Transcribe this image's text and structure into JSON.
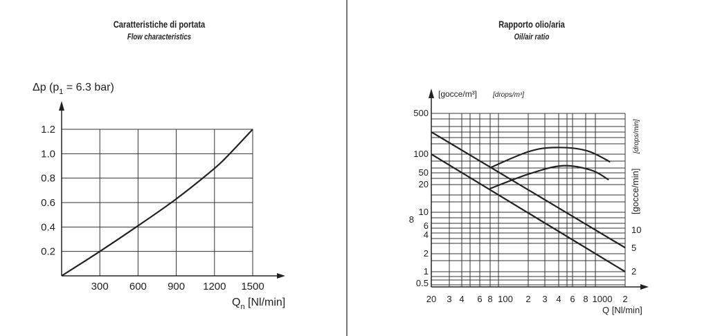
{
  "left_panel": {
    "title": "Caratteristiche di portata",
    "subtitle": "Flow characteristics"
  },
  "right_panel": {
    "title": "Rapporto olio/aria",
    "subtitle": "Oil/air ratio"
  },
  "chart_data": [
    {
      "type": "line",
      "ylabel": "Δp (p1 = 6.3 bar)",
      "ylabel_main": "Δp (p",
      "ylabel_sub": "1",
      "ylabel_rest": " = 6.3 bar)",
      "xlabel_main": "Q",
      "xlabel_sub": "n",
      "xlabel_rest": " [Nl/min]",
      "xlim": [
        0,
        1500
      ],
      "ylim": [
        0,
        1.2
      ],
      "xticks": [
        "300",
        "600",
        "900",
        "1200",
        "1500"
      ],
      "yticks": [
        "0.2",
        "0.4",
        "0.6",
        "0.8",
        "1.0",
        "1.2"
      ],
      "grid": true,
      "series": [
        {
          "x": [
            0,
            300,
            600,
            900,
            1200,
            1320,
            1500
          ],
          "y": [
            0,
            0.2,
            0.41,
            0.63,
            0.88,
            1.0,
            1.2
          ]
        }
      ],
      "color": "#222222"
    },
    {
      "type": "line",
      "xscale": "log",
      "yscale": "log",
      "ylabel": "[gocce/m³]",
      "ylabel_en": "[drops/m³]",
      "ylabel_right": "[gocce/min]",
      "ylabel_right_en": "[drops/min]",
      "xlabel": "Q [Nl/min]",
      "xlim": [
        20,
        2000
      ],
      "xticks": [
        "20",
        "3",
        "4",
        "6",
        "8",
        "100",
        "2",
        "3",
        "4",
        "6",
        "8",
        "1000",
        "2"
      ],
      "yticks_left": [
        "500",
        "100",
        "50",
        "20",
        "10",
        "8",
        "6",
        "4",
        "2",
        "1",
        "0.5"
      ],
      "yticks_right": [
        "10",
        "5",
        "2"
      ],
      "grid": true,
      "series": [
        {
          "x": [
            20,
            2000
          ],
          "y": [
            240,
            2.5
          ]
        },
        {
          "x": [
            20,
            2000
          ],
          "y": [
            100,
            1
          ]
        },
        {
          "x": [
            80,
            200,
            380,
            800,
            1400
          ],
          "y": [
            60,
            110,
            130,
            115,
            75
          ]
        },
        {
          "x": [
            80,
            200,
            450,
            900,
            1350
          ],
          "y": [
            18,
            45,
            65,
            55,
            29
          ]
        }
      ],
      "color": "#222222"
    }
  ]
}
